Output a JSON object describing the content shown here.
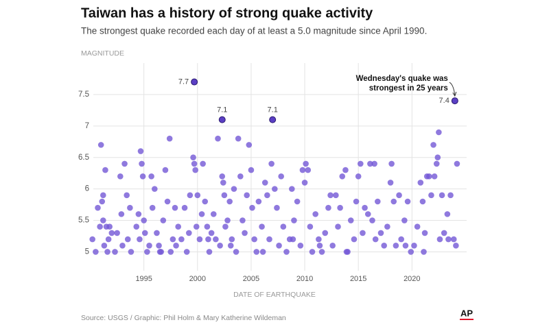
{
  "chart_data": {
    "type": "scatter",
    "title": "Taiwan has a history of strong quake activity",
    "subtitle": "The strongest quake recorded each day of at least a 5.0 magnitude since April 1990.",
    "y_label": "MAGNITUDE",
    "x_label": "DATE OF EARTHQUAKE",
    "source": "Source: USGS / Graphic: Phil Holm & Mary Katherine Wildeman",
    "logo": "AP",
    "annotation": [
      "Wednesday's quake was",
      "strongest in 25 years"
    ],
    "xlim": [
      1989.9,
      2025.1
    ],
    "ylim": [
      4.7,
      8.0
    ],
    "xticks": [
      1995,
      2000,
      2005,
      2010,
      2015,
      2020
    ],
    "yticks": [
      5,
      5.5,
      6,
      6.5,
      7,
      7.5
    ],
    "grid": true,
    "color": "#7357d6",
    "x": [
      1990.2,
      1990.5,
      1990.7,
      1990.9,
      1991.0,
      1991.1,
      1991.2,
      1991.3,
      1991.4,
      1991.5,
      1991.6,
      1991.7,
      1991.2,
      1991.8,
      1992.0,
      1992.3,
      1992.5,
      1992.8,
      1992.9,
      1993.0,
      1993.2,
      1993.4,
      1993.5,
      1993.7,
      1993.8,
      1994.3,
      1994.5,
      1994.6,
      1994.7,
      1994.8,
      1994.9,
      1995.0,
      1995.1,
      1995.3,
      1995.5,
      1995.7,
      1995.8,
      1996.0,
      1996.2,
      1996.4,
      1996.6,
      1996.8,
      1997.0,
      1997.2,
      1997.4,
      1997.5,
      1997.7,
      1997.9,
      1998.2,
      1998.5,
      1998.8,
      1999.0,
      1999.2,
      1999.3,
      1999.6,
      1999.7,
      1999.8,
      1999.9,
      2000.0,
      2000.2,
      2000.4,
      2000.5,
      2000.7,
      2000.9,
      2001.1,
      2001.3,
      2001.5,
      2001.7,
      2001.9,
      2002.1,
      2002.3,
      2002.4,
      2002.5,
      2002.6,
      2002.8,
      2003.0,
      2003.2,
      2003.4,
      2003.6,
      2003.8,
      2004.0,
      2004.2,
      2004.4,
      2004.6,
      2004.8,
      2005.0,
      2005.1,
      2005.3,
      2005.5,
      2005.7,
      2006.0,
      2006.3,
      2006.5,
      2006.7,
      2006.9,
      2007.2,
      2007.4,
      2007.6,
      2007.8,
      2008.0,
      2008.3,
      2008.6,
      2008.8,
      2009.0,
      2009.3,
      2009.6,
      2009.8,
      2010.0,
      2010.1,
      2010.3,
      2010.5,
      2010.7,
      2011.0,
      2011.3,
      2011.6,
      2011.9,
      2012.2,
      2012.4,
      2012.6,
      2012.9,
      2013.1,
      2013.3,
      2013.5,
      2013.8,
      2014.0,
      2014.3,
      2014.6,
      2014.8,
      2015.0,
      2015.2,
      2015.4,
      2015.6,
      2015.9,
      2016.1,
      2016.3,
      2016.5,
      2016.8,
      2017.1,
      2017.4,
      2017.7,
      2018.0,
      2018.1,
      2018.3,
      2018.5,
      2018.8,
      2019.0,
      2019.3,
      2019.6,
      2019.9,
      2020.2,
      2020.5,
      2020.8,
      2021.0,
      2021.2,
      2021.4,
      2021.6,
      2021.8,
      2022.0,
      2022.1,
      2022.3,
      2022.4,
      2022.5,
      2022.6,
      2022.8,
      2023.0,
      2023.3,
      2023.6,
      2023.9,
      2024.2,
      2024.1,
      1996.5,
      1998.0,
      2001.0,
      2003.1,
      2006.1,
      2008.9,
      2011.4,
      2013.9,
      2016.6,
      2019.4,
      2021.1,
      2023.4
    ],
    "values": [
      5.2,
      5.0,
      5.7,
      5.4,
      6.7,
      5.8,
      5.9,
      5.1,
      6.3,
      5.4,
      5.0,
      5.2,
      5.5,
      5.4,
      5.3,
      5.0,
      5.3,
      6.2,
      5.6,
      5.1,
      6.4,
      5.9,
      5.2,
      5.7,
      5.0,
      5.4,
      5.6,
      5.2,
      6.6,
      6.4,
      6.2,
      5.5,
      5.3,
      5.0,
      5.1,
      6.2,
      5.7,
      6.0,
      5.3,
      5.1,
      5.0,
      5.5,
      6.3,
      5.8,
      6.8,
      5.0,
      5.2,
      5.7,
      5.4,
      5.2,
      5.7,
      5.0,
      5.3,
      5.9,
      6.5,
      6.4,
      6.3,
      5.4,
      5.9,
      5.2,
      5.6,
      6.4,
      5.8,
      5.4,
      5.0,
      5.3,
      5.6,
      5.2,
      6.8,
      5.1,
      6.2,
      6.1,
      5.9,
      5.4,
      5.5,
      5.8,
      5.2,
      6.0,
      5.0,
      6.8,
      6.2,
      5.5,
      5.3,
      5.9,
      6.7,
      6.3,
      5.7,
      5.2,
      5.0,
      5.8,
      5.4,
      6.1,
      5.9,
      5.2,
      6.4,
      6.0,
      5.7,
      5.1,
      6.2,
      5.4,
      5.0,
      5.2,
      6.0,
      5.5,
      5.8,
      5.1,
      6.3,
      6.1,
      6.4,
      6.3,
      5.4,
      5.0,
      5.6,
      5.2,
      5.0,
      5.3,
      5.7,
      5.9,
      5.1,
      5.9,
      5.4,
      5.7,
      6.2,
      6.3,
      5.0,
      5.5,
      5.2,
      5.8,
      6.2,
      6.4,
      5.3,
      5.7,
      5.6,
      6.4,
      5.5,
      6.4,
      5.8,
      5.3,
      5.1,
      5.4,
      6.1,
      6.4,
      5.8,
      5.1,
      5.9,
      5.2,
      5.5,
      5.8,
      5.0,
      5.1,
      5.4,
      6.1,
      5.8,
      5.3,
      6.2,
      6.2,
      5.9,
      6.7,
      6.2,
      6.4,
      6.5,
      6.9,
      5.2,
      5.9,
      5.3,
      5.6,
      5.9,
      5.2,
      6.4,
      5.1,
      5.0,
      5.1,
      5.2,
      5.1,
      5.0,
      5.2,
      5.1,
      5.0,
      5.2,
      5.1,
      5.0,
      5.2
    ],
    "highlights": {
      "color": "#5b3fc4",
      "x": [
        1999.7,
        2002.3,
        2007.0,
        2024.0
      ],
      "values": [
        7.7,
        7.1,
        7.1,
        7.4
      ]
    }
  }
}
